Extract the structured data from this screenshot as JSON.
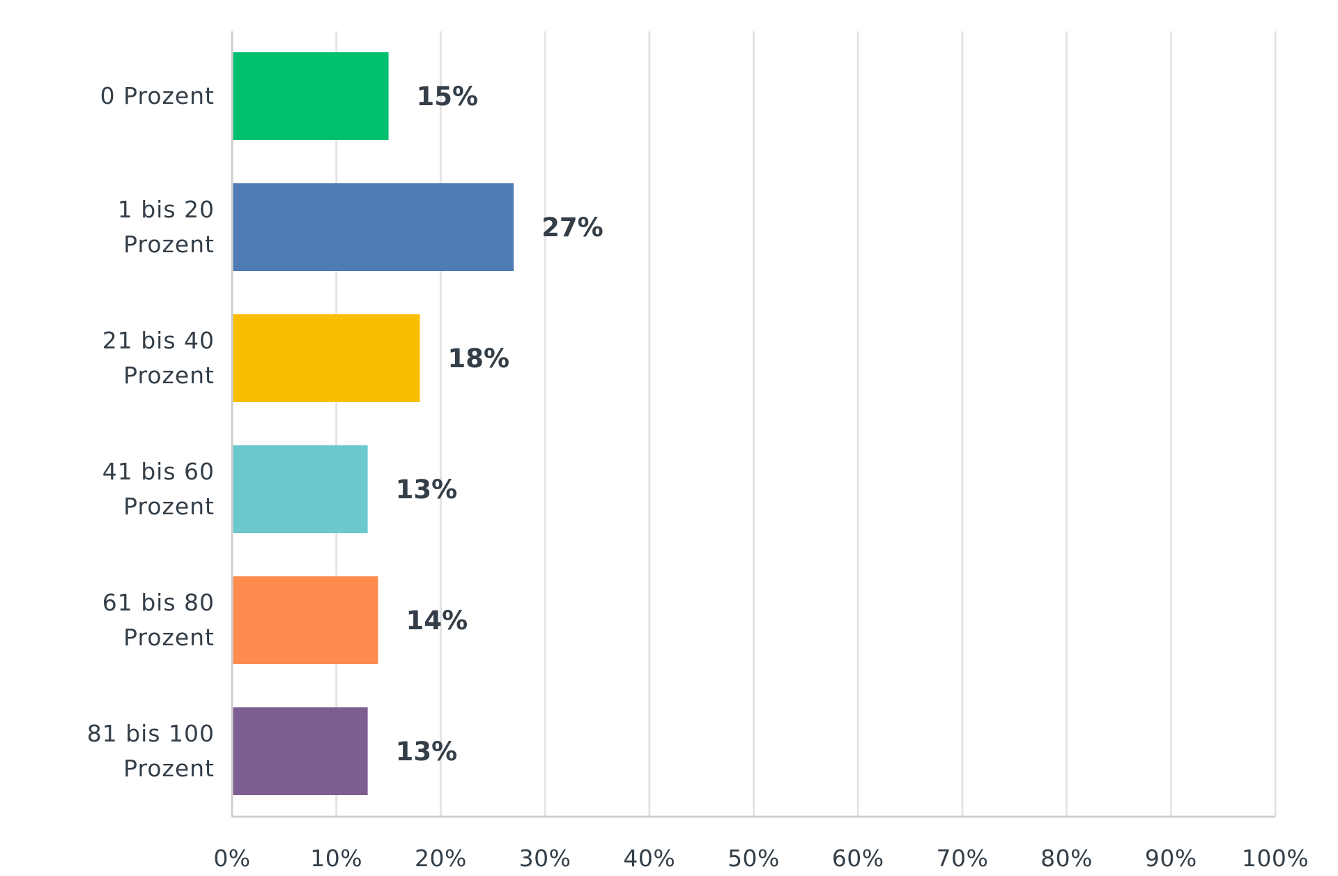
{
  "chart_data": {
    "type": "bar",
    "orientation": "horizontal",
    "categories": [
      [
        "0 Prozent"
      ],
      [
        "1 bis 20",
        "Prozent"
      ],
      [
        "21 bis 40",
        "Prozent"
      ],
      [
        "41 bis 60",
        "Prozent"
      ],
      [
        "61 bis 80",
        "Prozent"
      ],
      [
        "81 bis 100",
        "Prozent"
      ]
    ],
    "values": [
      15,
      27,
      18,
      13,
      14,
      13
    ],
    "data_labels": [
      "15%",
      "27%",
      "18%",
      "13%",
      "14%",
      "13%"
    ],
    "colors": [
      "#00bf6f",
      "#507cb6",
      "#f9be00",
      "#6bc8cd",
      "#ff8b4f",
      "#7d5e90"
    ],
    "xlim": [
      0,
      100
    ],
    "x_ticks": [
      0,
      10,
      20,
      30,
      40,
      50,
      60,
      70,
      80,
      90,
      100
    ],
    "x_tick_labels": [
      "0%",
      "10%",
      "20%",
      "30%",
      "40%",
      "50%",
      "60%",
      "70%",
      "80%",
      "90%",
      "100%"
    ],
    "grid": true,
    "legend": "none",
    "title": "",
    "xlabel": "",
    "ylabel": ""
  }
}
